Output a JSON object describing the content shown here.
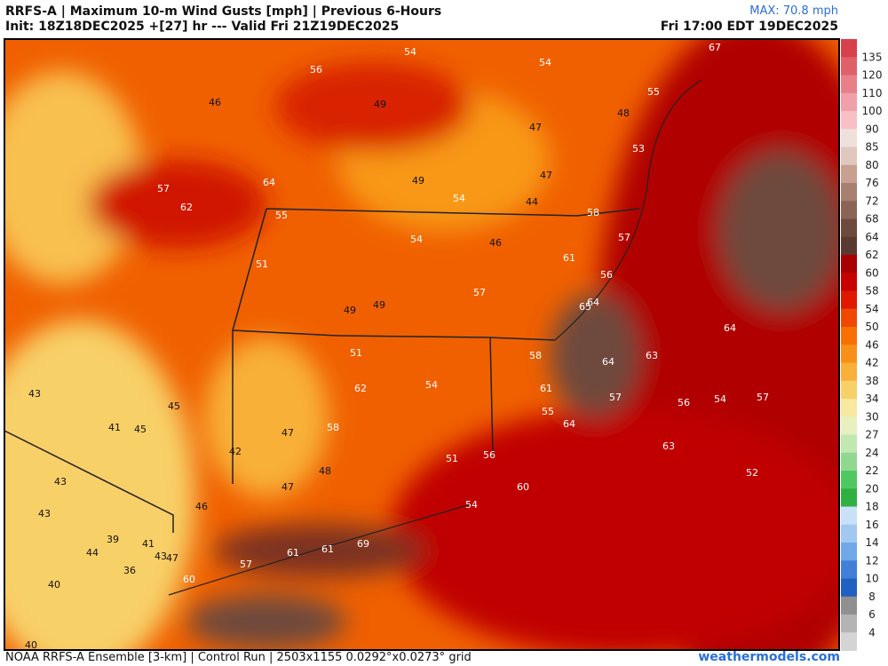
{
  "header": {
    "title": "RRFS-A | Maximum 10-m Wind Gusts [mph] | Previous 6-Hours",
    "subtitle": "Init: 18Z18DEC2025 +[27] hr --- Valid Fri 21Z19DEC2025",
    "max": "MAX: 70.8 mph",
    "valid_local": "Fri 17:00 EDT 19DEC2025"
  },
  "footer": {
    "left": "NOAA RRFS-A Ensemble [3-km] | Control Run | 2503x1155 0.0292°x0.0273° grid",
    "right": "weathermodels.com"
  },
  "colorbar": {
    "levels": [
      135,
      120,
      110,
      100,
      90,
      85,
      80,
      76,
      72,
      68,
      64,
      62,
      60,
      58,
      54,
      50,
      46,
      42,
      38,
      34,
      30,
      27,
      24,
      22,
      20,
      18,
      16,
      14,
      12,
      10,
      8,
      6,
      4
    ],
    "colors": [
      "#d8404c",
      "#e0606a",
      "#e8808a",
      "#f0a0a8",
      "#f8c0c4",
      "#f0e0dc",
      "#e0c8bc",
      "#c8a090",
      "#a88070",
      "#8c6456",
      "#6e4a3e",
      "#5a3a30",
      "#a80000",
      "#c80000",
      "#e01800",
      "#f04800",
      "#f87000",
      "#f89018",
      "#f8b038",
      "#f8d068",
      "#f8e8a0",
      "#e8f0c0",
      "#c0e8b0",
      "#90d890",
      "#50c860",
      "#30b040",
      "#c8e0f8",
      "#a0c8f0",
      "#70a8e8",
      "#4080d8",
      "#2060c0",
      "#909090",
      "#b4b4b4",
      "#d4d4d4"
    ]
  },
  "map": {
    "labels": [
      56,
      54,
      54,
      67,
      46,
      49,
      55,
      48,
      47,
      53,
      57,
      62,
      64,
      49,
      54,
      47,
      44,
      58,
      55,
      54,
      46,
      57,
      51,
      61,
      56,
      57,
      65,
      64,
      49,
      49,
      64,
      51,
      58,
      64,
      63,
      62,
      54,
      61,
      57,
      56,
      54,
      57,
      55,
      64,
      43,
      45,
      41,
      45,
      47,
      58,
      42,
      48,
      51,
      56,
      63,
      52,
      43,
      47,
      60,
      43,
      46,
      54,
      39,
      41,
      44,
      69,
      61,
      61,
      43,
      47,
      57,
      36,
      40,
      60,
      40
    ]
  }
}
